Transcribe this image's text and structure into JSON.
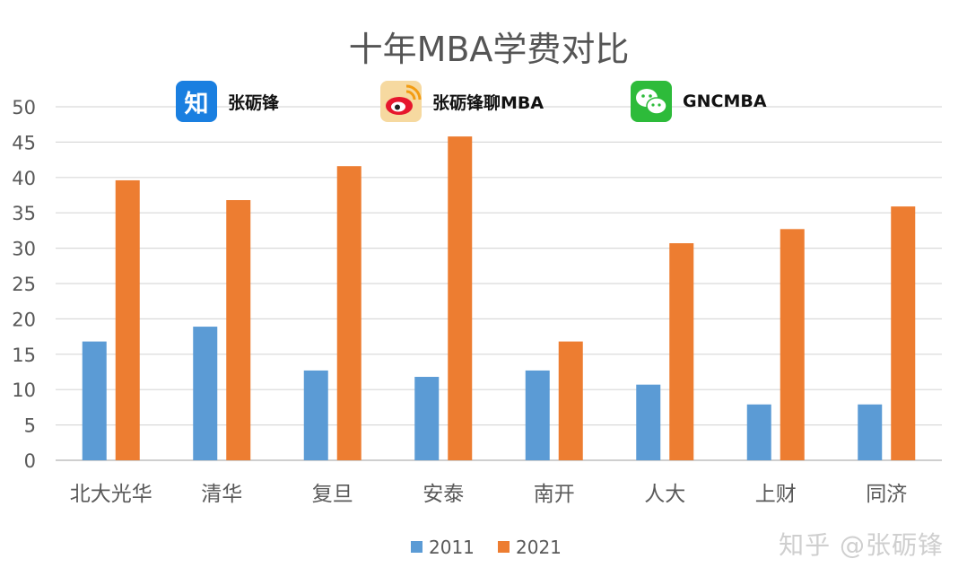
{
  "chart_data": {
    "type": "bar",
    "title": "十年MBA学费对比",
    "categories": [
      "北大光华",
      "清华",
      "复旦",
      "安泰",
      "南开",
      "人大",
      "上财",
      "同济"
    ],
    "series": [
      {
        "name": "2011",
        "color": "#5b9bd5",
        "values": [
          16.8,
          18.9,
          12.7,
          11.8,
          12.7,
          10.7,
          7.9,
          7.9
        ]
      },
      {
        "name": "2021",
        "color": "#ed7d31",
        "values": [
          39.6,
          36.8,
          41.6,
          45.8,
          16.8,
          30.7,
          32.7,
          35.9
        ]
      }
    ],
    "ylim": [
      0,
      50
    ],
    "yticks": [
      0,
      5,
      10,
      15,
      20,
      25,
      30,
      35,
      40,
      45,
      50
    ],
    "grid": true,
    "legend_position": "bottom"
  },
  "badges": [
    {
      "icon": "zhihu-logo-icon",
      "glyph": "知",
      "label": "张砺锋"
    },
    {
      "icon": "weibo-logo-icon",
      "label": "张砺锋聊MBA"
    },
    {
      "icon": "wechat-logo-icon",
      "label": "GNCMBA"
    }
  ],
  "watermark": "知乎 @张砺锋"
}
